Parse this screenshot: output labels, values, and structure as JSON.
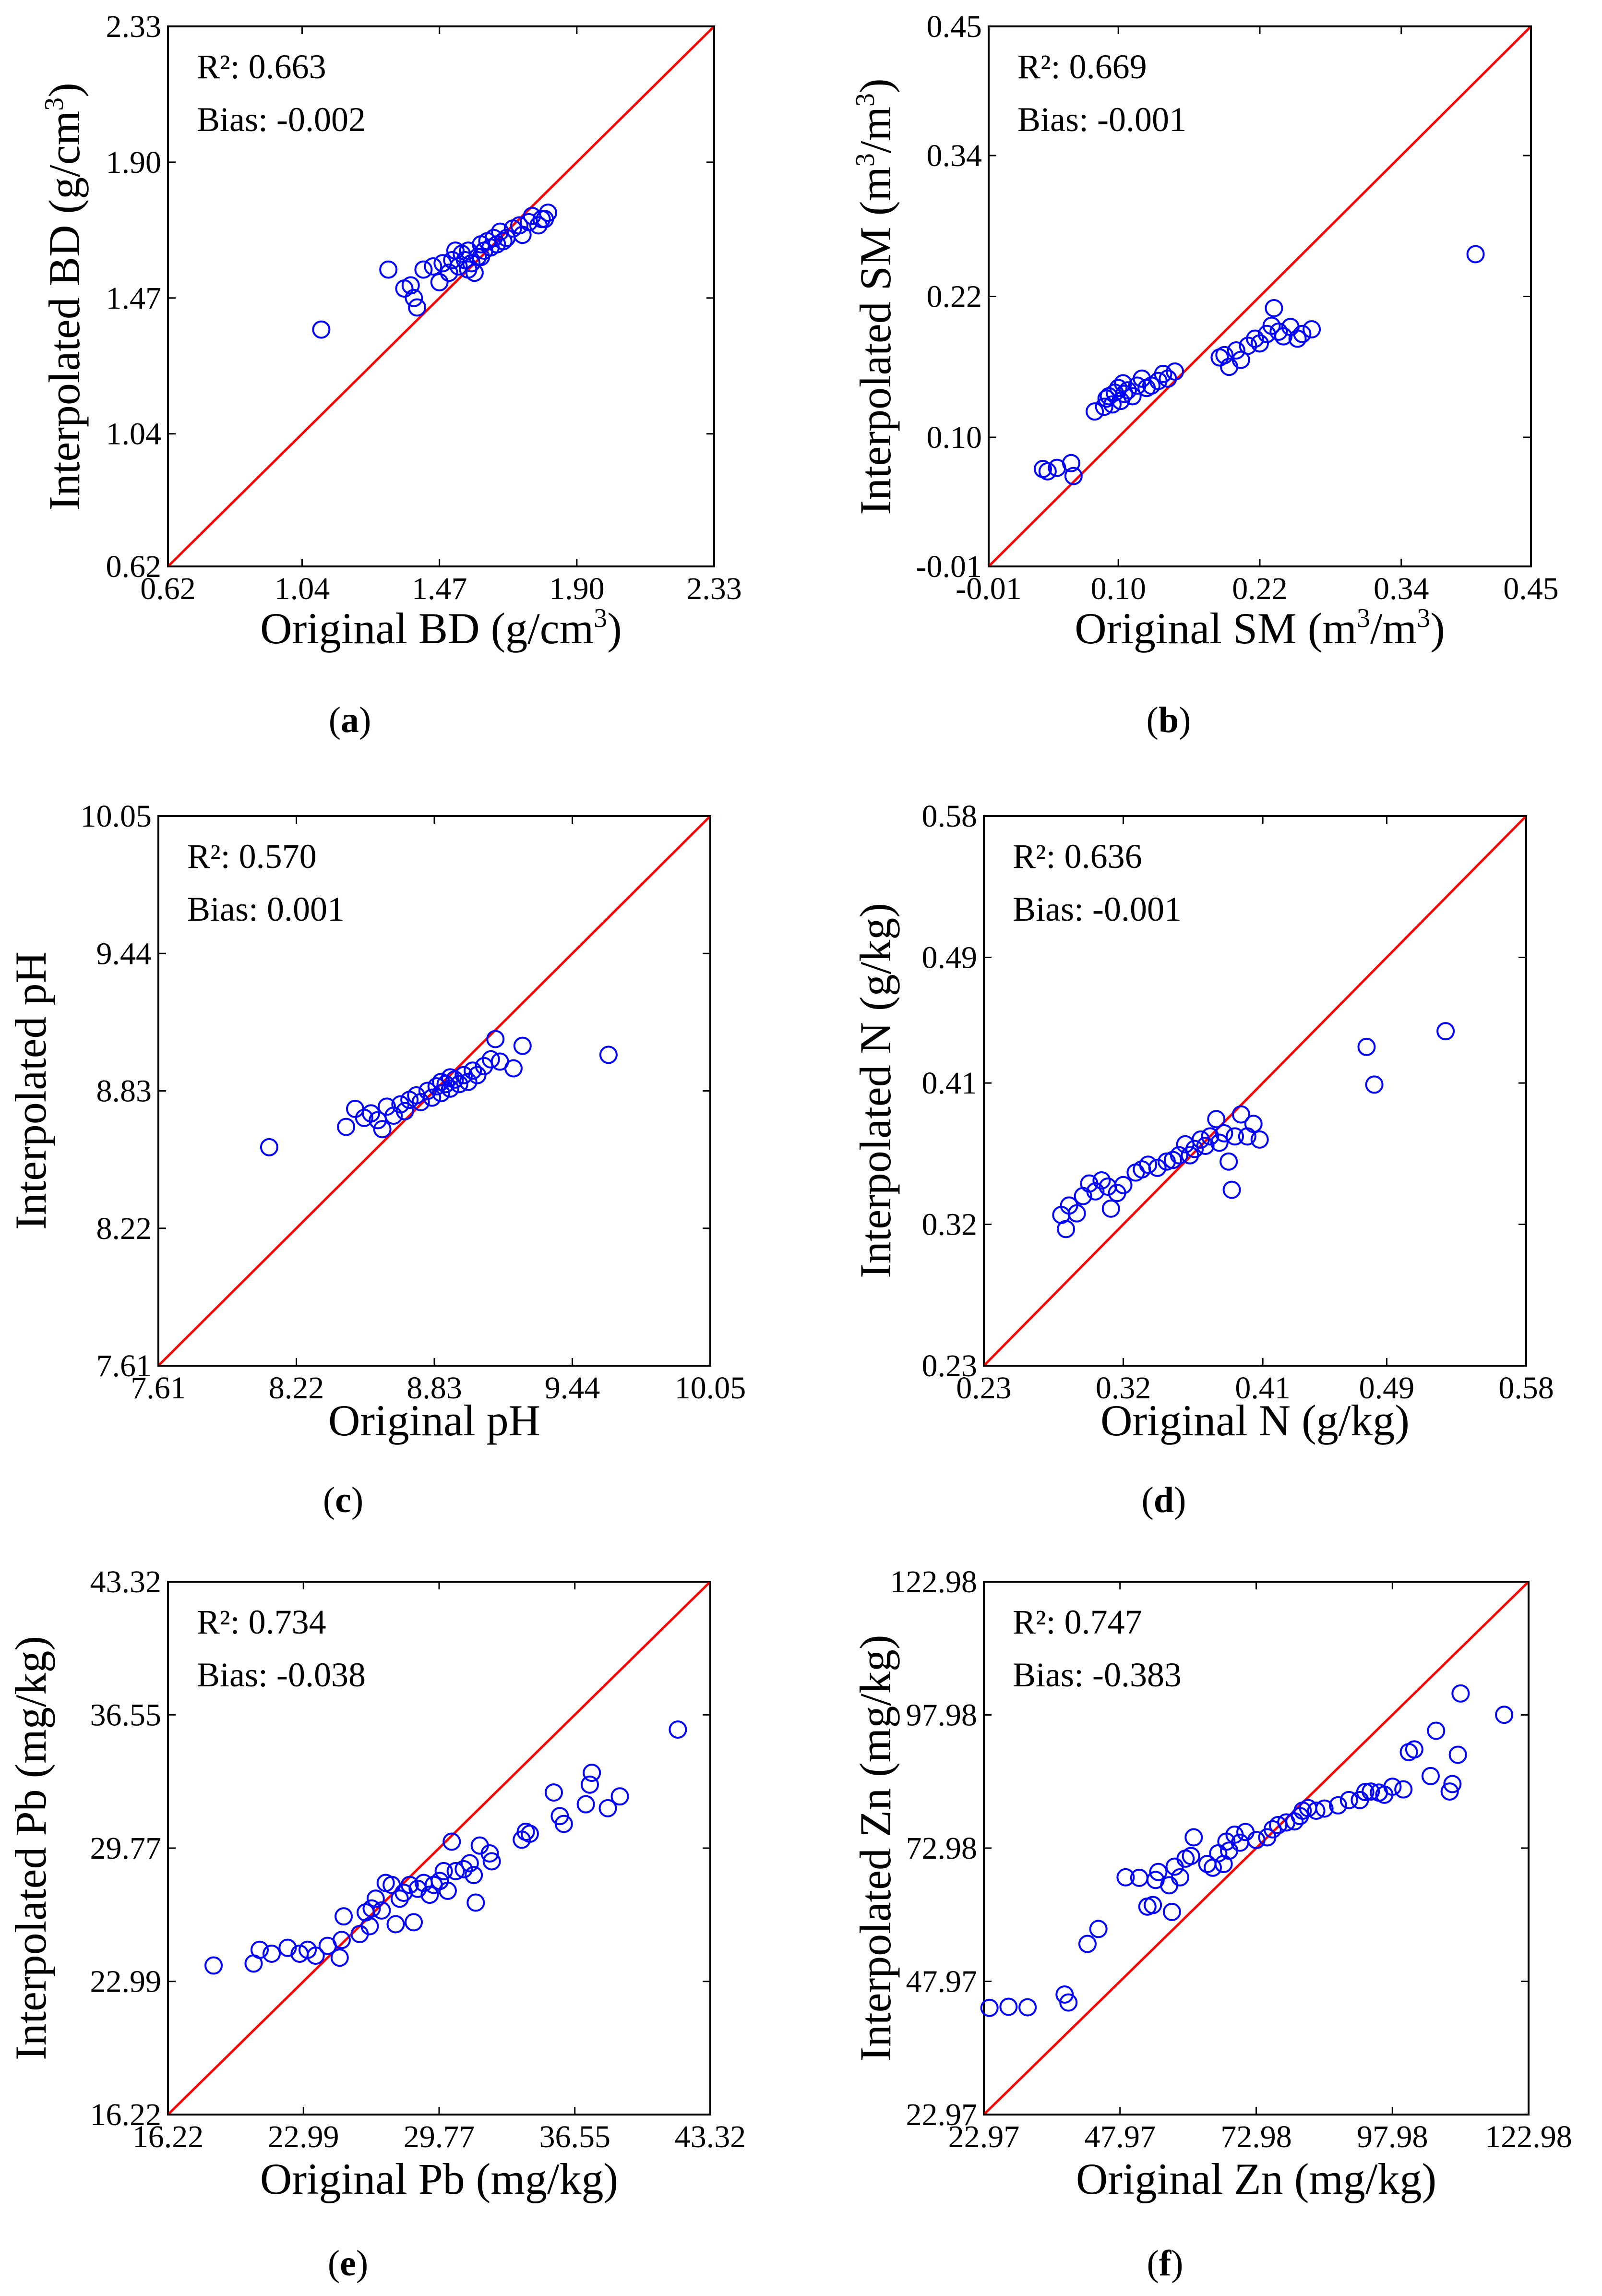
{
  "colors": {
    "points": "#0000ff",
    "identity_line": "#ff0000",
    "frame": "#000000"
  },
  "chart_data": [
    {
      "panel_letter": "a",
      "type": "scatter",
      "xlabel": {
        "text": "Original BD (g/cm",
        "sup": "3",
        "close": ")"
      },
      "ylabel": {
        "text": "Interpolated BD (g/cm",
        "sup": "3",
        "close": ")"
      },
      "xlim": [
        0.62,
        2.33
      ],
      "ylim": [
        0.62,
        2.33
      ],
      "ticks": [
        0.62,
        1.04,
        1.47,
        1.9,
        2.33
      ],
      "tick_labels": [
        "0.62",
        "1.04",
        "1.47",
        "1.90",
        "2.33"
      ],
      "stats": {
        "r2": "R²: 0.663",
        "bias": "Bias: -0.002"
      },
      "points": [
        [
          1.1,
          1.37
        ],
        [
          1.31,
          1.56
        ],
        [
          1.36,
          1.5
        ],
        [
          1.38,
          1.51
        ],
        [
          1.39,
          1.47
        ],
        [
          1.4,
          1.44
        ],
        [
          1.42,
          1.56
        ],
        [
          1.45,
          1.57
        ],
        [
          1.47,
          1.52
        ],
        [
          1.48,
          1.58
        ],
        [
          1.5,
          1.55
        ],
        [
          1.51,
          1.59
        ],
        [
          1.52,
          1.62
        ],
        [
          1.53,
          1.57
        ],
        [
          1.54,
          1.61
        ],
        [
          1.55,
          1.59
        ],
        [
          1.56,
          1.62
        ],
        [
          1.57,
          1.58
        ],
        [
          1.58,
          1.55
        ],
        [
          1.59,
          1.6
        ],
        [
          1.6,
          1.64
        ],
        [
          1.61,
          1.62
        ],
        [
          1.62,
          1.65
        ],
        [
          1.63,
          1.63
        ],
        [
          1.64,
          1.66
        ],
        [
          1.66,
          1.68
        ],
        [
          1.67,
          1.65
        ],
        [
          1.68,
          1.66
        ],
        [
          1.7,
          1.69
        ],
        [
          1.72,
          1.7
        ],
        [
          1.73,
          1.67
        ],
        [
          1.75,
          1.71
        ],
        [
          1.76,
          1.73
        ],
        [
          1.78,
          1.7
        ],
        [
          1.79,
          1.72
        ],
        [
          1.8,
          1.72
        ],
        [
          1.81,
          1.74
        ],
        [
          1.6,
          1.6
        ],
        [
          1.65,
          1.64
        ],
        [
          1.56,
          1.56
        ]
      ]
    },
    {
      "panel_letter": "b",
      "type": "scatter",
      "xlabel": {
        "text": "Original SM (m",
        "sup": "3",
        "mid": "/m",
        "sup2": "3",
        "close": ")"
      },
      "ylabel": {
        "text": "Interpolated SM (m",
        "sup": "3",
        "mid": "/m",
        "sup2": "3",
        "close": ")"
      },
      "xlim": [
        -0.01,
        0.45
      ],
      "ylim": [
        -0.01,
        0.45
      ],
      "ticks": [
        -0.01,
        0.1,
        0.22,
        0.34,
        0.45
      ],
      "tick_labels": [
        "-0.01",
        "0.10",
        "0.22",
        "0.34",
        "0.45"
      ],
      "stats": {
        "r2": "R²: 0.669",
        "bias": "Bias: -0.001"
      },
      "points": [
        [
          0.036,
          0.073
        ],
        [
          0.04,
          0.071
        ],
        [
          0.048,
          0.074
        ],
        [
          0.06,
          0.078
        ],
        [
          0.062,
          0.067
        ],
        [
          0.08,
          0.122
        ],
        [
          0.088,
          0.126
        ],
        [
          0.09,
          0.133
        ],
        [
          0.092,
          0.135
        ],
        [
          0.095,
          0.128
        ],
        [
          0.097,
          0.138
        ],
        [
          0.1,
          0.142
        ],
        [
          0.102,
          0.131
        ],
        [
          0.104,
          0.146
        ],
        [
          0.105,
          0.137
        ],
        [
          0.108,
          0.14
        ],
        [
          0.112,
          0.135
        ],
        [
          0.116,
          0.144
        ],
        [
          0.12,
          0.15
        ],
        [
          0.124,
          0.142
        ],
        [
          0.128,
          0.144
        ],
        [
          0.134,
          0.148
        ],
        [
          0.138,
          0.154
        ],
        [
          0.142,
          0.15
        ],
        [
          0.148,
          0.156
        ],
        [
          0.186,
          0.168
        ],
        [
          0.19,
          0.17
        ],
        [
          0.194,
          0.16
        ],
        [
          0.2,
          0.174
        ],
        [
          0.204,
          0.166
        ],
        [
          0.21,
          0.178
        ],
        [
          0.216,
          0.184
        ],
        [
          0.22,
          0.18
        ],
        [
          0.226,
          0.188
        ],
        [
          0.23,
          0.195
        ],
        [
          0.232,
          0.21
        ],
        [
          0.236,
          0.19
        ],
        [
          0.24,
          0.186
        ],
        [
          0.246,
          0.194
        ],
        [
          0.252,
          0.184
        ],
        [
          0.256,
          0.188
        ],
        [
          0.264,
          0.192
        ],
        [
          0.403,
          0.256
        ]
      ]
    },
    {
      "panel_letter": "c",
      "type": "scatter",
      "xlabel": {
        "text": "Original pH"
      },
      "ylabel": {
        "text": "Interpolated pH"
      },
      "xlim": [
        7.61,
        10.05
      ],
      "ylim": [
        7.61,
        10.05
      ],
      "ticks": [
        7.61,
        8.22,
        8.83,
        9.44,
        10.05
      ],
      "tick_labels": [
        "7.61",
        "8.22",
        "8.83",
        "9.44",
        "10.05"
      ],
      "stats": {
        "r2": "R²: 0.570",
        "bias": "Bias: 0.001"
      },
      "points": [
        [
          8.1,
          8.58
        ],
        [
          8.44,
          8.67
        ],
        [
          8.48,
          8.75
        ],
        [
          8.52,
          8.71
        ],
        [
          8.55,
          8.73
        ],
        [
          8.58,
          8.7
        ],
        [
          8.6,
          8.66
        ],
        [
          8.62,
          8.76
        ],
        [
          8.65,
          8.72
        ],
        [
          8.68,
          8.77
        ],
        [
          8.7,
          8.74
        ],
        [
          8.72,
          8.79
        ],
        [
          8.75,
          8.81
        ],
        [
          8.77,
          8.78
        ],
        [
          8.8,
          8.83
        ],
        [
          8.82,
          8.8
        ],
        [
          8.84,
          8.85
        ],
        [
          8.86,
          8.82
        ],
        [
          8.88,
          8.86
        ],
        [
          8.9,
          8.84
        ],
        [
          8.92,
          8.88
        ],
        [
          8.94,
          8.86
        ],
        [
          8.96,
          8.9
        ],
        [
          8.98,
          8.87
        ],
        [
          9.0,
          8.92
        ],
        [
          9.02,
          8.9
        ],
        [
          9.05,
          8.94
        ],
        [
          9.08,
          8.97
        ],
        [
          9.1,
          9.06
        ],
        [
          9.12,
          8.96
        ],
        [
          9.18,
          8.93
        ],
        [
          9.22,
          9.03
        ],
        [
          9.6,
          8.99
        ],
        [
          8.86,
          8.87
        ],
        [
          8.9,
          8.89
        ]
      ]
    },
    {
      "panel_letter": "d",
      "type": "scatter",
      "xlabel": {
        "text": "Original N (g/kg)"
      },
      "ylabel": {
        "text": "Interpolated N (g/kg)"
      },
      "xlim": [
        0.23,
        0.58
      ],
      "ylim": [
        0.23,
        0.58
      ],
      "ticks": [
        0.23,
        0.32,
        0.41,
        0.49,
        0.58
      ],
      "tick_labels": [
        "0.23",
        "0.32",
        "0.41",
        "0.49",
        "0.58"
      ],
      "stats": {
        "r2": "R²: 0.636",
        "bias": "Bias: -0.001"
      },
      "points": [
        [
          0.28,
          0.326
        ],
        [
          0.283,
          0.317
        ],
        [
          0.285,
          0.332
        ],
        [
          0.29,
          0.327
        ],
        [
          0.294,
          0.338
        ],
        [
          0.298,
          0.346
        ],
        [
          0.302,
          0.341
        ],
        [
          0.306,
          0.348
        ],
        [
          0.31,
          0.344
        ],
        [
          0.312,
          0.33
        ],
        [
          0.316,
          0.34
        ],
        [
          0.32,
          0.345
        ],
        [
          0.328,
          0.353
        ],
        [
          0.332,
          0.355
        ],
        [
          0.336,
          0.358
        ],
        [
          0.342,
          0.356
        ],
        [
          0.348,
          0.36
        ],
        [
          0.352,
          0.361
        ],
        [
          0.356,
          0.364
        ],
        [
          0.36,
          0.371
        ],
        [
          0.363,
          0.364
        ],
        [
          0.366,
          0.368
        ],
        [
          0.37,
          0.374
        ],
        [
          0.373,
          0.37
        ],
        [
          0.376,
          0.376
        ],
        [
          0.38,
          0.387
        ],
        [
          0.382,
          0.372
        ],
        [
          0.385,
          0.378
        ],
        [
          0.388,
          0.36
        ],
        [
          0.39,
          0.342
        ],
        [
          0.392,
          0.376
        ],
        [
          0.396,
          0.39
        ],
        [
          0.4,
          0.376
        ],
        [
          0.404,
          0.384
        ],
        [
          0.408,
          0.374
        ],
        [
          0.477,
          0.433
        ],
        [
          0.482,
          0.409
        ],
        [
          0.528,
          0.443
        ]
      ]
    },
    {
      "panel_letter": "e",
      "type": "scatter",
      "xlabel": {
        "text": "Original Pb (mg/kg)"
      },
      "ylabel": {
        "text": "Interpolated Pb (mg/kg)"
      },
      "xlim": [
        16.22,
        43.32
      ],
      "ylim": [
        16.22,
        43.32
      ],
      "ticks": [
        16.22,
        22.99,
        29.77,
        36.55,
        43.32
      ],
      "tick_labels": [
        "16.22",
        "22.99",
        "29.77",
        "36.55",
        "43.32"
      ],
      "stats": {
        "r2": "R²: 0.734",
        "bias": "Bias: -0.038"
      },
      "points": [
        [
          18.5,
          23.8
        ],
        [
          20.5,
          23.9
        ],
        [
          20.8,
          24.6
        ],
        [
          21.4,
          24.4
        ],
        [
          22.2,
          24.7
        ],
        [
          22.8,
          24.4
        ],
        [
          23.2,
          24.6
        ],
        [
          23.6,
          24.3
        ],
        [
          24.2,
          24.8
        ],
        [
          24.8,
          24.2
        ],
        [
          24.9,
          25.1
        ],
        [
          25.0,
          26.3
        ],
        [
          25.8,
          25.4
        ],
        [
          26.1,
          26.5
        ],
        [
          26.3,
          25.8
        ],
        [
          26.4,
          26.7
        ],
        [
          26.6,
          27.2
        ],
        [
          26.9,
          26.6
        ],
        [
          27.1,
          28.0
        ],
        [
          27.4,
          27.9
        ],
        [
          27.6,
          25.9
        ],
        [
          27.8,
          27.2
        ],
        [
          28.0,
          27.5
        ],
        [
          28.3,
          27.9
        ],
        [
          28.5,
          26.0
        ],
        [
          28.7,
          27.7
        ],
        [
          29.0,
          28.0
        ],
        [
          29.3,
          27.4
        ],
        [
          29.5,
          27.9
        ],
        [
          29.8,
          28.1
        ],
        [
          30.0,
          28.6
        ],
        [
          30.2,
          27.6
        ],
        [
          30.4,
          30.1
        ],
        [
          30.6,
          28.6
        ],
        [
          31.0,
          28.7
        ],
        [
          31.3,
          29.0
        ],
        [
          31.5,
          28.4
        ],
        [
          31.6,
          27.0
        ],
        [
          31.8,
          29.9
        ],
        [
          32.3,
          29.5
        ],
        [
          32.4,
          29.1
        ],
        [
          33.9,
          30.2
        ],
        [
          34.1,
          30.6
        ],
        [
          34.3,
          30.5
        ],
        [
          35.5,
          32.6
        ],
        [
          35.8,
          31.4
        ],
        [
          36.0,
          31.0
        ],
        [
          37.1,
          32.0
        ],
        [
          37.3,
          33.0
        ],
        [
          37.4,
          33.6
        ],
        [
          38.2,
          31.8
        ],
        [
          38.8,
          32.4
        ],
        [
          41.7,
          35.8
        ]
      ]
    },
    {
      "panel_letter": "f",
      "type": "scatter",
      "xlabel": {
        "text": "Original Zn (mg/kg)"
      },
      "ylabel": {
        "text": "Interpolated Zn (mg/kg)"
      },
      "xlim": [
        22.97,
        122.98
      ],
      "ylim": [
        22.97,
        122.98
      ],
      "ticks": [
        22.97,
        47.97,
        72.98,
        97.98,
        122.98
      ],
      "tick_labels": [
        "22.97",
        "47.97",
        "72.98",
        "97.98",
        "122.98"
      ],
      "stats": {
        "r2": "R²: 0.747",
        "bias": "Bias: -0.383"
      },
      "points": [
        [
          24.0,
          43.0
        ],
        [
          27.5,
          43.2
        ],
        [
          31.0,
          43.1
        ],
        [
          37.8,
          45.5
        ],
        [
          38.5,
          44.0
        ],
        [
          42.0,
          55.0
        ],
        [
          44.0,
          57.8
        ],
        [
          49.0,
          67.5
        ],
        [
          51.5,
          67.4
        ],
        [
          53.0,
          62.0
        ],
        [
          54.0,
          62.3
        ],
        [
          54.5,
          67.0
        ],
        [
          55.0,
          68.5
        ],
        [
          57.0,
          66.0
        ],
        [
          57.5,
          61.0
        ],
        [
          58.0,
          69.5
        ],
        [
          59.0,
          67.5
        ],
        [
          60.0,
          71.0
        ],
        [
          61.0,
          71.5
        ],
        [
          61.5,
          75.0
        ],
        [
          64.0,
          70.0
        ],
        [
          65.0,
          69.3
        ],
        [
          66.0,
          72.0
        ],
        [
          67.0,
          70.0
        ],
        [
          67.5,
          74.2
        ],
        [
          68.0,
          72.5
        ],
        [
          69.0,
          75.5
        ],
        [
          70.0,
          74.0
        ],
        [
          71.0,
          76.0
        ],
        [
          73.0,
          74.5
        ],
        [
          75.0,
          75.0
        ],
        [
          76.0,
          76.5
        ],
        [
          77.0,
          77.3
        ],
        [
          78.5,
          77.8
        ],
        [
          80.0,
          78.0
        ],
        [
          81.0,
          79.0
        ],
        [
          81.5,
          80.0
        ],
        [
          82.5,
          80.5
        ],
        [
          84.0,
          80.0
        ],
        [
          85.5,
          80.4
        ],
        [
          88.0,
          81.0
        ],
        [
          90.0,
          82.0
        ],
        [
          92.0,
          82.0
        ],
        [
          93.0,
          83.5
        ],
        [
          94.0,
          83.6
        ],
        [
          95.5,
          83.4
        ],
        [
          96.5,
          83.0
        ],
        [
          98.0,
          84.5
        ],
        [
          100.0,
          84.0
        ],
        [
          101.0,
          91.0
        ],
        [
          102.0,
          91.5
        ],
        [
          105.0,
          86.5
        ],
        [
          106.0,
          95.0
        ],
        [
          108.5,
          83.6
        ],
        [
          109.0,
          85.0
        ],
        [
          110.0,
          90.5
        ],
        [
          110.5,
          102.0
        ],
        [
          118.5,
          98.0
        ]
      ]
    }
  ]
}
